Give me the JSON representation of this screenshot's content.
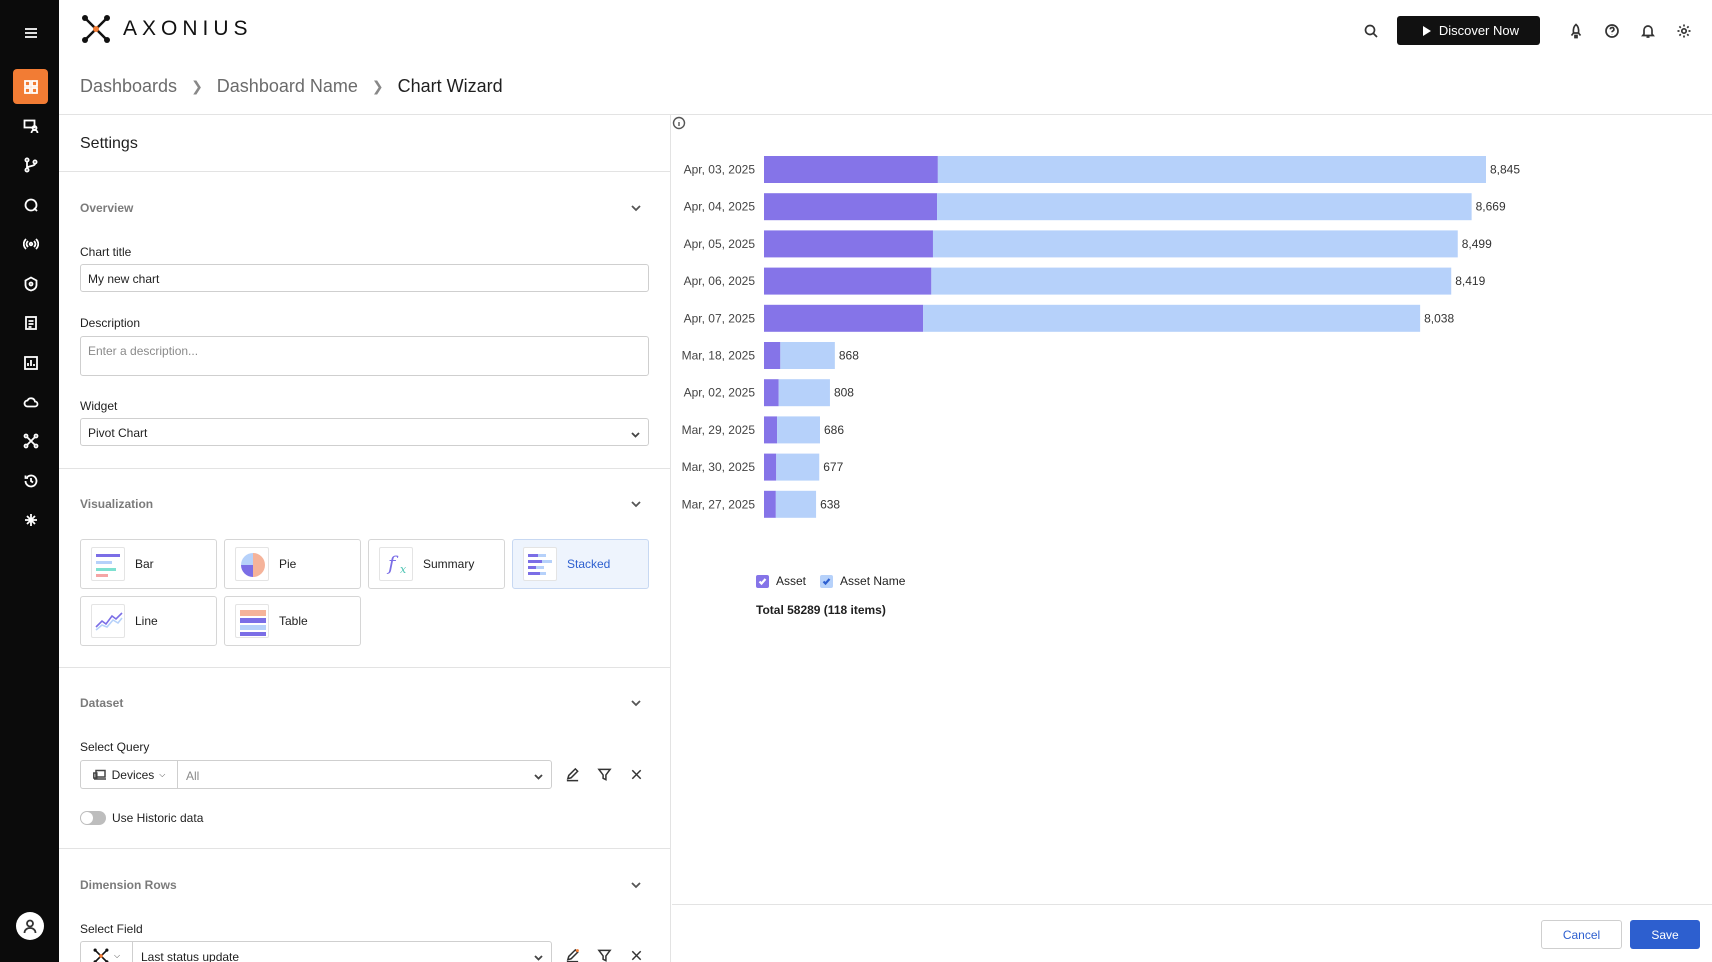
{
  "app": {
    "brand": "AXONIUS"
  },
  "header": {
    "discover_label": "Discover Now"
  },
  "breadcrumb": {
    "items": [
      "Dashboards",
      "Dashboard Name",
      "Chart Wizard"
    ]
  },
  "settings": {
    "title": "Settings",
    "overview": {
      "title": "Overview",
      "chart_title_label": "Chart title",
      "chart_title_value": "My new chart",
      "description_label": "Description",
      "description_placeholder": "Enter a description...",
      "widget_label": "Widget",
      "widget_value": "Pivot Chart"
    },
    "visualization": {
      "title": "Visualization",
      "options": [
        "Bar",
        "Pie",
        "Summary",
        "Stacked",
        "Line",
        "Table"
      ],
      "selected": "Stacked"
    },
    "dataset": {
      "title": "Dataset",
      "select_query_label": "Select Query",
      "entity": "Devices",
      "query": "All",
      "historic_label": "Use Historic data",
      "historic_enabled": false
    },
    "dimension_rows": {
      "title": "Dimension Rows",
      "select_field_label": "Select Field",
      "field_value": "Last status update"
    }
  },
  "chart_data": {
    "type": "bar",
    "orientation": "horizontal",
    "stacked": true,
    "categories": [
      "Apr, 03, 2025",
      "Apr, 04, 2025",
      "Apr, 05, 2025",
      "Apr, 06, 2025",
      "Apr, 07, 2025",
      "Mar, 18, 2025",
      "Apr, 02, 2025",
      "Mar, 29, 2025",
      "Mar, 30, 2025",
      "Mar, 27, 2025"
    ],
    "total_labels": [
      "8,845",
      "8,669",
      "8,499",
      "8,419",
      "8,038",
      "868",
      "808",
      "686",
      "677",
      "638"
    ],
    "totals": [
      8845,
      8669,
      8499,
      8419,
      8038,
      868,
      808,
      686,
      677,
      638
    ],
    "series": [
      {
        "name": "Asset",
        "color": "#8574e8",
        "values": [
          2130,
          2120,
          2070,
          2050,
          1950,
          200,
          180,
          160,
          150,
          145
        ]
      },
      {
        "name": "Asset Name",
        "color": "#b6d1fa",
        "values": [
          6715,
          6549,
          6429,
          6369,
          6088,
          668,
          628,
          526,
          527,
          493
        ]
      }
    ],
    "legend_position": "bottom-left",
    "total_text": "Total 58289 (118 items)"
  },
  "footer": {
    "cancel_label": "Cancel",
    "save_label": "Save"
  },
  "colors": {
    "accent": "#f27c34",
    "primary": "#2d5fcf",
    "sidebar": "#0b0b0b"
  }
}
